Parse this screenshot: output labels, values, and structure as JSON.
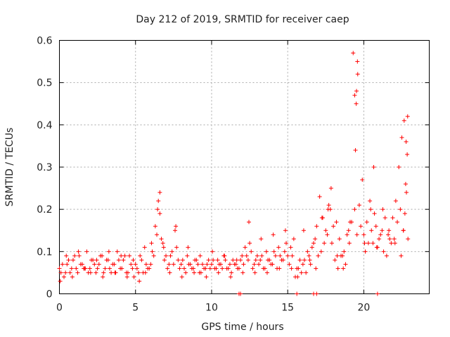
{
  "chart_data": {
    "type": "scatter",
    "title": "Day 212 of 2019, SRMTID for receiver caep",
    "xlabel": "GPS time / hours",
    "ylabel": "SRMTID / TECUs",
    "xlim": [
      0,
      24.3
    ],
    "ylim": [
      0,
      0.6
    ],
    "xticks": [
      0,
      5,
      10,
      15,
      20
    ],
    "xtick_labels": [
      "0",
      "5",
      "10",
      "15",
      "20"
    ],
    "yticks": [
      0,
      0.1,
      0.2,
      0.3,
      0.4,
      0.5,
      0.6
    ],
    "ytick_labels": [
      "0",
      "0.1",
      "0.2",
      "0.3",
      "0.4",
      "0.5",
      "0.6"
    ],
    "grid": true,
    "marker": "+",
    "color": "#ff0000",
    "series": [
      {
        "name": "SRMTID",
        "x": [
          0.0,
          0.2,
          0.4,
          0.6,
          0.8,
          1.0,
          1.2,
          1.4,
          1.6,
          1.8,
          2.0,
          2.2,
          2.4,
          2.6,
          2.8,
          3.0,
          3.2,
          3.4,
          3.6,
          3.8,
          4.0,
          4.2,
          4.4,
          4.6,
          4.8,
          5.0,
          5.2,
          5.4,
          5.6,
          5.8,
          6.0,
          6.2,
          6.4,
          6.6,
          6.8,
          7.0,
          7.2,
          7.4,
          7.6,
          7.8,
          8.0,
          8.2,
          8.4,
          8.6,
          8.8,
          9.0,
          9.2,
          9.4,
          9.6,
          9.8,
          10.0,
          10.2,
          10.4,
          10.6,
          10.8,
          11.0,
          11.2,
          11.4,
          11.6,
          11.8,
          12.0,
          12.2,
          12.4,
          12.6,
          12.8,
          13.0,
          13.2,
          13.4,
          13.6,
          13.8,
          14.0,
          14.2,
          14.4,
          14.6,
          14.8,
          15.0,
          15.2,
          15.4,
          15.6,
          15.8,
          16.0,
          16.2,
          16.4,
          16.6,
          16.8,
          17.0,
          17.2,
          17.4,
          17.6,
          17.8,
          18.0,
          18.2,
          18.4,
          18.6,
          18.8,
          19.0,
          19.2,
          19.4,
          19.5,
          19.6,
          19.8,
          20.0,
          20.2,
          20.4,
          20.6,
          20.8,
          21.0,
          21.2,
          21.4,
          21.6,
          21.8,
          22.0,
          22.2,
          22.4,
          22.6,
          22.7,
          22.8,
          22.9,
          0.1,
          0.3,
          0.5,
          0.7,
          0.9,
          1.1,
          1.3,
          1.5,
          1.7,
          1.9,
          2.1,
          2.3,
          2.5,
          2.7,
          2.9,
          3.1,
          3.3,
          3.5,
          3.7,
          3.9,
          4.1,
          4.3,
          4.5,
          4.7,
          4.9,
          5.1,
          5.3,
          5.5,
          5.7,
          5.9,
          6.1,
          6.3,
          6.5,
          6.7,
          6.9,
          7.1,
          7.3,
          7.5,
          7.7,
          7.9,
          8.1,
          8.3,
          8.5,
          8.7,
          8.9,
          9.1,
          9.3,
          9.5,
          9.7,
          9.9,
          10.1,
          10.3,
          10.5,
          10.7,
          10.9,
          11.1,
          11.3,
          11.5,
          11.7,
          11.9,
          12.1,
          12.3,
          12.5,
          12.7,
          12.9,
          13.1,
          13.3,
          13.5,
          13.7,
          13.9,
          14.1,
          14.3,
          14.5,
          14.7,
          14.9,
          15.1,
          15.3,
          15.5,
          15.7,
          15.9,
          16.1,
          16.3,
          16.5,
          16.7,
          16.9,
          17.1,
          17.3,
          17.5,
          17.7,
          17.9,
          18.1,
          18.3,
          18.5,
          18.7,
          18.9,
          19.1,
          19.3,
          19.45,
          19.55,
          19.7,
          19.9,
          20.1,
          20.3,
          20.5,
          20.7,
          20.9,
          21.1,
          21.3,
          21.5,
          21.7,
          21.9,
          22.1,
          22.3,
          22.5,
          22.65,
          22.75,
          22.85,
          0.05,
          0.45,
          0.85,
          1.25,
          1.65,
          2.05,
          2.45,
          2.85,
          3.25,
          3.65,
          4.05,
          4.45,
          4.85,
          5.25,
          5.65,
          6.05,
          6.45,
          6.6,
          6.85,
          7.25,
          7.65,
          8.05,
          8.45,
          8.85,
          9.25,
          9.65,
          10.05,
          10.45,
          10.85,
          11.25,
          11.65,
          12.05,
          12.45,
          12.85,
          13.25,
          13.65,
          14.05,
          14.45,
          14.85,
          15.25,
          15.65,
          16.05,
          16.45,
          16.85,
          17.25,
          17.65,
          17.85,
          18.25,
          18.65,
          19.05,
          19.4,
          19.52,
          19.58,
          20.05,
          20.45,
          20.65,
          20.85,
          21.25,
          21.65,
          22.05,
          22.45,
          22.6,
          22.78,
          22.88,
          11.8,
          11.9,
          15.6,
          16.7,
          16.9,
          20.9
        ],
        "y": [
          0.06,
          0.07,
          0.05,
          0.08,
          0.06,
          0.09,
          0.05,
          0.07,
          0.06,
          0.1,
          0.06,
          0.08,
          0.05,
          0.07,
          0.09,
          0.06,
          0.08,
          0.05,
          0.07,
          0.1,
          0.06,
          0.08,
          0.05,
          0.09,
          0.06,
          0.07,
          0.05,
          0.08,
          0.11,
          0.06,
          0.07,
          0.09,
          0.14,
          0.19,
          0.12,
          0.09,
          0.07,
          0.1,
          0.15,
          0.08,
          0.07,
          0.06,
          0.09,
          0.07,
          0.06,
          0.08,
          0.05,
          0.07,
          0.06,
          0.08,
          0.07,
          0.06,
          0.08,
          0.07,
          0.09,
          0.06,
          0.07,
          0.08,
          0.07,
          0.06,
          0.09,
          0.11,
          0.08,
          0.1,
          0.07,
          0.09,
          0.08,
          0.06,
          0.1,
          0.08,
          0.07,
          0.09,
          0.11,
          0.08,
          0.1,
          0.09,
          0.11,
          0.13,
          0.06,
          0.08,
          0.07,
          0.05,
          0.09,
          0.11,
          0.13,
          0.09,
          0.1,
          0.12,
          0.14,
          0.2,
          0.16,
          0.17,
          0.13,
          0.09,
          0.07,
          0.15,
          0.17,
          0.2,
          0.45,
          0.52,
          0.16,
          0.14,
          0.17,
          0.22,
          0.12,
          0.16,
          0.13,
          0.15,
          0.18,
          0.14,
          0.12,
          0.13,
          0.17,
          0.2,
          0.15,
          0.19,
          0.24,
          0.13,
          0.05,
          0.04,
          0.07,
          0.05,
          0.08,
          0.06,
          0.09,
          0.07,
          0.06,
          0.05,
          0.08,
          0.07,
          0.06,
          0.09,
          0.05,
          0.08,
          0.06,
          0.07,
          0.05,
          0.08,
          0.06,
          0.09,
          0.05,
          0.07,
          0.04,
          0.06,
          0.09,
          0.05,
          0.07,
          0.06,
          0.1,
          0.16,
          0.22,
          0.13,
          0.08,
          0.06,
          0.09,
          0.07,
          0.11,
          0.06,
          0.08,
          0.05,
          0.07,
          0.06,
          0.08,
          0.07,
          0.05,
          0.06,
          0.07,
          0.06,
          0.08,
          0.06,
          0.07,
          0.06,
          0.08,
          0.06,
          0.05,
          0.07,
          0.06,
          0.08,
          0.07,
          0.09,
          0.12,
          0.06,
          0.08,
          0.07,
          0.09,
          0.06,
          0.08,
          0.07,
          0.1,
          0.06,
          0.09,
          0.08,
          0.12,
          0.07,
          0.09,
          0.04,
          0.06,
          0.05,
          0.08,
          0.1,
          0.07,
          0.12,
          0.16,
          0.23,
          0.18,
          0.15,
          0.21,
          0.12,
          0.08,
          0.06,
          0.09,
          0.1,
          0.14,
          0.17,
          0.57,
          0.34,
          0.14,
          0.21,
          0.27,
          0.1,
          0.12,
          0.15,
          0.19,
          0.11,
          0.14,
          0.1,
          0.09,
          0.13,
          0.18,
          0.22,
          0.3,
          0.37,
          0.41,
          0.26,
          0.33,
          0.03,
          0.09,
          0.04,
          0.1,
          0.06,
          0.05,
          0.08,
          0.04,
          0.1,
          0.05,
          0.09,
          0.04,
          0.08,
          0.03,
          0.05,
          0.12,
          0.2,
          0.24,
          0.11,
          0.05,
          0.16,
          0.04,
          0.11,
          0.05,
          0.09,
          0.04,
          0.1,
          0.05,
          0.09,
          0.04,
          0.08,
          0.05,
          0.17,
          0.05,
          0.13,
          0.05,
          0.14,
          0.06,
          0.15,
          0.06,
          0.04,
          0.15,
          0.08,
          0.06,
          0.18,
          0.2,
          0.25,
          0.09,
          0.06,
          0.12,
          0.47,
          0.48,
          0.55,
          0.12,
          0.2,
          0.3,
          0.11,
          0.2,
          0.15,
          0.12,
          0.09,
          0.15,
          0.36,
          0.42,
          0.0,
          0.0,
          0.0,
          0.0,
          0.0,
          0.0
        ]
      }
    ]
  }
}
